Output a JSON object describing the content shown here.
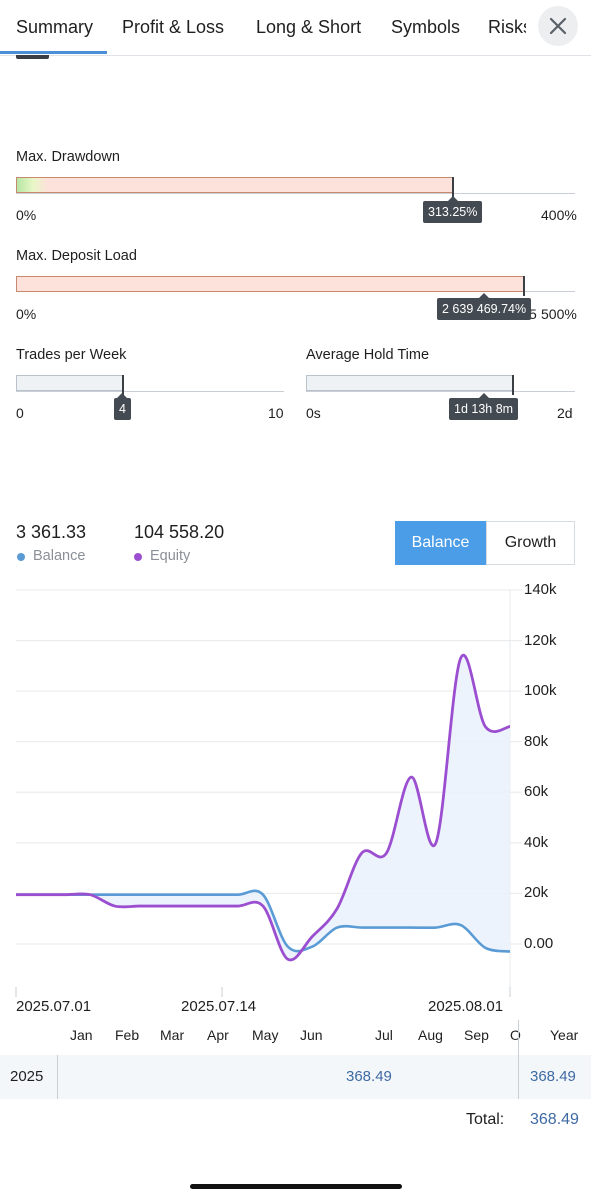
{
  "tabs": [
    "Summary",
    "Profit & Loss",
    "Long & Short",
    "Symbols",
    "Risks"
  ],
  "max_drawdown": {
    "label": "Max. Drawdown",
    "min": "0%",
    "max": "400%",
    "value": "313.25%",
    "fraction": 0.7831
  },
  "max_deposit_load": {
    "label": "Max. Deposit Load",
    "min": "0%",
    "max": "500%",
    "max_partial": "5",
    "value": "2 639 469.74%",
    "fraction": 1.0
  },
  "trades_per_week": {
    "label": "Trades per Week",
    "min": "0",
    "max": "10",
    "value": "4",
    "fraction": 0.4
  },
  "avg_hold_time": {
    "label": "Average Hold Time",
    "min": "0s",
    "max": "2d",
    "value": "1d 13h 8m",
    "fraction": 0.7736
  },
  "legend": {
    "balance_value": "3 361.33",
    "balance_label": "Balance",
    "equity_value": "104 558.20",
    "equity_label": "Equity"
  },
  "toggles": {
    "balance": "Balance",
    "growth": "Growth"
  },
  "colors": {
    "accent": "#4a9de6",
    "balance_line": "#5b9bd5",
    "equity_line": "#9b4fd0",
    "drawdown_fill": "#fde2db"
  },
  "chart_data": {
    "type": "line",
    "x_labels": [
      "2025.07.01",
      "2025.07.14",
      "2025.08.01"
    ],
    "y_ticks": [
      "140k",
      "120k",
      "100k",
      "80k",
      "60k",
      "40k",
      "20k",
      "0.00"
    ],
    "ylim": [
      0,
      140000
    ],
    "series": [
      {
        "name": "Balance",
        "x": [
          0,
          1,
          2,
          3,
          4,
          5,
          6,
          7,
          8,
          9,
          10,
          11,
          12,
          13,
          14,
          15,
          16,
          17,
          18,
          19,
          20
        ],
        "values": [
          19500,
          19500,
          19500,
          19500,
          19500,
          19500,
          19500,
          19500,
          19500,
          19500,
          19500,
          -1000,
          -1000,
          6500,
          6500,
          6500,
          6500,
          6500,
          7500,
          -1500,
          -3000
        ]
      },
      {
        "name": "Equity",
        "x": [
          0,
          1,
          2,
          3,
          4,
          5,
          6,
          7,
          8,
          9,
          10,
          11,
          12,
          13,
          14,
          15,
          16,
          17,
          18,
          19,
          20
        ],
        "values": [
          19500,
          19500,
          19500,
          19500,
          15000,
          15000,
          15000,
          15000,
          15000,
          15000,
          15000,
          -6000,
          3000,
          14000,
          36000,
          36000,
          66000,
          40000,
          113000,
          86000,
          86000
        ]
      }
    ]
  },
  "months": [
    "Jan",
    "Feb",
    "Mar",
    "Apr",
    "May",
    "Jun",
    "Jul",
    "Aug",
    "Sep",
    "O",
    "Year"
  ],
  "table": {
    "year": "2025",
    "jul_value": "368.49",
    "year_value": "368.49",
    "total_label": "Total:",
    "total_value": "368.49"
  }
}
